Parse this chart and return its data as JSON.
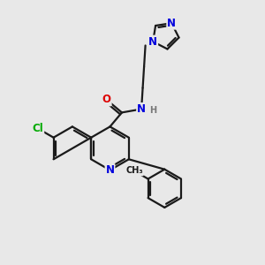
{
  "bg_color": "#e8e8e8",
  "bond_color": "#1a1a1a",
  "bond_width": 1.6,
  "atom_colors": {
    "N": "#0000dd",
    "O": "#dd0000",
    "Cl": "#00aa00",
    "H": "#777777",
    "C": "#1a1a1a"
  },
  "font_size_atom": 8.5,
  "font_size_small": 7.0,
  "font_size_methyl": 7.0
}
